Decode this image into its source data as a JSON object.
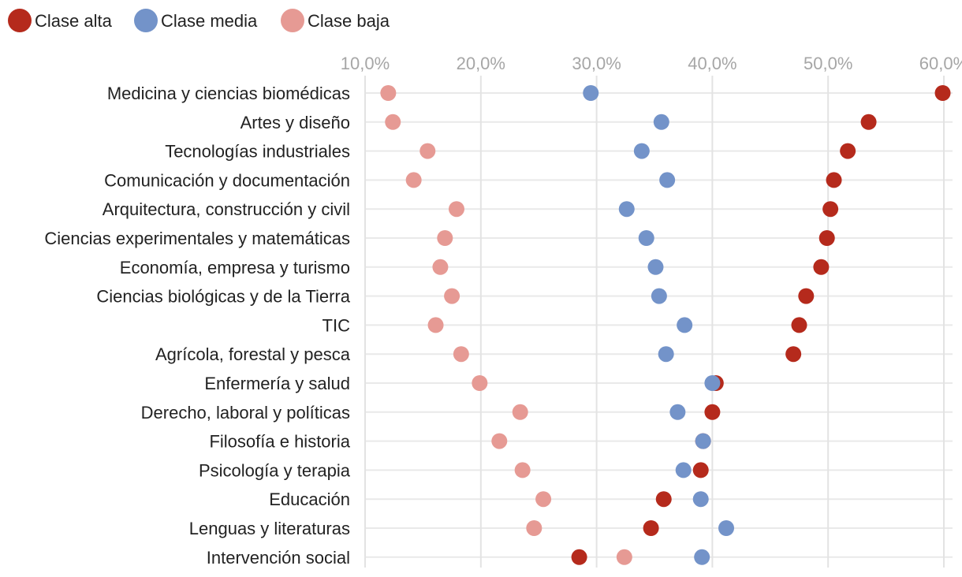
{
  "chart_data": {
    "type": "scatter",
    "title": "",
    "xlabel": "",
    "ylabel": "",
    "xlim": [
      10,
      61
    ],
    "x_ticks": [
      "10,0%",
      "20,0%",
      "30,0%",
      "40,0%",
      "50,0%",
      "60,0%"
    ],
    "x_tick_values": [
      10,
      20,
      30,
      40,
      50,
      60
    ],
    "legend_position": "top-left",
    "categories": [
      "Medicina y ciencias biomédicas",
      "Artes y diseño",
      "Tecnologías industriales",
      "Comunicación y documentación",
      "Arquitectura, construcción y civil",
      "Ciencias experimentales y matemáticas",
      "Economía, empresa y turismo",
      "Ciencias biológicas y de la Tierra",
      "TIC",
      "Agrícola, forestal y pesca",
      "Enfermería y salud",
      "Derecho, laboral y políticas",
      "Filosofía e historia",
      "Psicología y terapia",
      "Educación",
      "Lenguas y literaturas",
      "Intervención social"
    ],
    "series": [
      {
        "name": "Clase alta",
        "color": "#b52a1c",
        "values": [
          59.9,
          53.5,
          51.7,
          50.5,
          50.2,
          49.9,
          49.4,
          48.1,
          47.5,
          47.0,
          40.3,
          40.0,
          39.2,
          39.0,
          35.8,
          34.7,
          28.5
        ]
      },
      {
        "name": "Clase media",
        "color": "#7393c9",
        "values": [
          29.5,
          35.6,
          33.9,
          36.1,
          32.6,
          34.3,
          35.1,
          35.4,
          37.6,
          36.0,
          40.0,
          37.0,
          39.2,
          37.5,
          39.0,
          41.2,
          39.1
        ]
      },
      {
        "name": "Clase baja",
        "color": "#e69a94",
        "values": [
          12.0,
          12.4,
          15.4,
          14.2,
          17.9,
          16.9,
          16.5,
          17.5,
          16.1,
          18.3,
          19.9,
          23.4,
          21.6,
          23.6,
          25.4,
          24.6,
          32.4
        ]
      }
    ]
  }
}
